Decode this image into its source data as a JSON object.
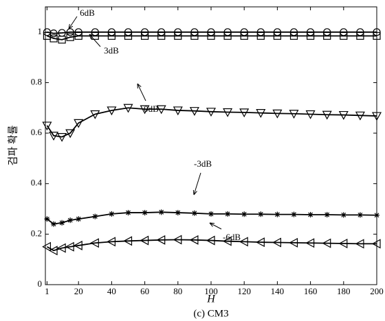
{
  "chart_data": {
    "type": "line",
    "x_label": "H",
    "y_label": "검파 확률",
    "caption": "(c) CM3",
    "x": [
      1,
      5,
      10,
      15,
      20,
      30,
      40,
      50,
      60,
      70,
      80,
      90,
      100,
      110,
      120,
      130,
      140,
      150,
      160,
      170,
      180,
      190,
      200
    ],
    "series": [
      {
        "name": "6dB",
        "marker": "circle",
        "color": "#000000",
        "values": [
          1.0,
          0.995,
          0.997,
          1.0,
          1.0,
          1.0,
          1.0,
          1.0,
          1.0,
          1.0,
          1.0,
          1.0,
          1.0,
          1.0,
          1.0,
          1.0,
          1.0,
          1.0,
          1.0,
          1.0,
          1.0,
          1.0,
          1.0
        ]
      },
      {
        "name": "3dB",
        "marker": "square",
        "color": "#000000",
        "values": [
          0.985,
          0.975,
          0.97,
          0.98,
          0.985,
          0.985,
          0.985,
          0.985,
          0.985,
          0.985,
          0.985,
          0.985,
          0.985,
          0.985,
          0.985,
          0.985,
          0.985,
          0.985,
          0.985,
          0.985,
          0.985,
          0.985,
          0.985
        ]
      },
      {
        "name": "0dB",
        "marker": "triangle-down",
        "color": "#000000",
        "values": [
          0.63,
          0.59,
          0.585,
          0.6,
          0.64,
          0.675,
          0.69,
          0.7,
          0.695,
          0.695,
          0.69,
          0.688,
          0.685,
          0.683,
          0.682,
          0.68,
          0.678,
          0.677,
          0.675,
          0.673,
          0.672,
          0.67,
          0.668
        ]
      },
      {
        "name": "-3dB",
        "marker": "star",
        "color": "#000000",
        "values": [
          0.26,
          0.24,
          0.245,
          0.255,
          0.26,
          0.27,
          0.28,
          0.285,
          0.285,
          0.287,
          0.285,
          0.283,
          0.28,
          0.28,
          0.279,
          0.279,
          0.278,
          0.278,
          0.277,
          0.277,
          0.276,
          0.276,
          0.275
        ]
      },
      {
        "name": "-6dB",
        "marker": "triangle-left",
        "color": "#000000",
        "values": [
          0.15,
          0.135,
          0.145,
          0.15,
          0.155,
          0.165,
          0.17,
          0.173,
          0.175,
          0.177,
          0.178,
          0.177,
          0.175,
          0.172,
          0.17,
          0.168,
          0.167,
          0.166,
          0.165,
          0.164,
          0.163,
          0.162,
          0.162
        ]
      }
    ],
    "annotations": [
      "6dB",
      "3dB",
      "0dB",
      "-3dB",
      "-6dB"
    ],
    "xlim": [
      0,
      200
    ],
    "xticks": [
      1,
      20,
      40,
      60,
      80,
      100,
      120,
      140,
      160,
      180,
      200
    ],
    "ylim": [
      0,
      1.1
    ],
    "yticks": [
      0,
      0.2,
      0.4,
      0.6,
      0.8,
      1
    ]
  }
}
